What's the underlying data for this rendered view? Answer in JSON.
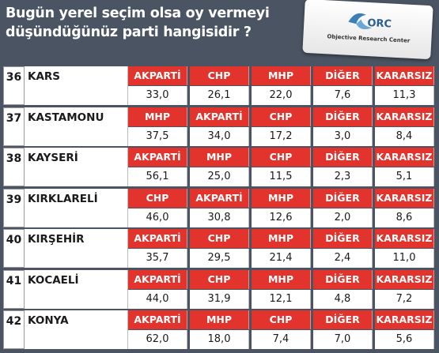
{
  "title_line1": "Bugün yerel seçim olsa oy vermeyi",
  "title_line2": "düşündüğünüz  parti hangisidir ?",
  "logo_text": "Objective Research Center",
  "rows": [
    {
      "num": "36",
      "city": "KARS",
      "parties": [
        "AKPARTİ",
        "CHP",
        "MHP",
        "DİĞER",
        "KARARSIZ"
      ],
      "values": [
        "33,0",
        "26,1",
        "22,0",
        "7,6",
        "11,3"
      ]
    },
    {
      "num": "37",
      "city": "KASTAMONU",
      "parties": [
        "MHP",
        "AKPARTİ",
        "CHP",
        "DİĞER",
        "KARARSIZ"
      ],
      "values": [
        "37,5",
        "34,0",
        "17,2",
        "3,0",
        "8,4"
      ]
    },
    {
      "num": "38",
      "city": "KAYSERİ",
      "parties": [
        "AKPARTİ",
        "MHP",
        "CHP",
        "DİĞER",
        "KARARSIZ"
      ],
      "values": [
        "56,1",
        "25,0",
        "11,5",
        "2,3",
        "5,1"
      ]
    },
    {
      "num": "39",
      "city": "KIRKLARELİ",
      "parties": [
        "CHP",
        "AKPARTİ",
        "MHP",
        "DİĞER",
        "KARARSIZ"
      ],
      "values": [
        "46,0",
        "30,8",
        "12,6",
        "2,0",
        "8,6"
      ]
    },
    {
      "num": "40",
      "city": "KIRŞEHİR",
      "parties": [
        "AKPARTİ",
        "CHP",
        "MHP",
        "DİĞER",
        "KARARSIZ"
      ],
      "values": [
        "35,7",
        "29,5",
        "21,4",
        "2,4",
        "11,0"
      ]
    },
    {
      "num": "41",
      "city": "KOCAELİ",
      "parties": [
        "AKPARTİ",
        "CHP",
        "MHP",
        "DİĞER",
        "KARARSIZ"
      ],
      "values": [
        "44,0",
        "31,9",
        "12,1",
        "4,8",
        "7,2"
      ]
    },
    {
      "num": "42",
      "city": "KONYA",
      "parties": [
        "AKPARTİ",
        "MHP",
        "CHP",
        "DİĞER",
        "KARARSIZ"
      ],
      "values": [
        "62,0",
        "18,0",
        "7,4",
        "7,0",
        "5,6"
      ]
    }
  ]
}
